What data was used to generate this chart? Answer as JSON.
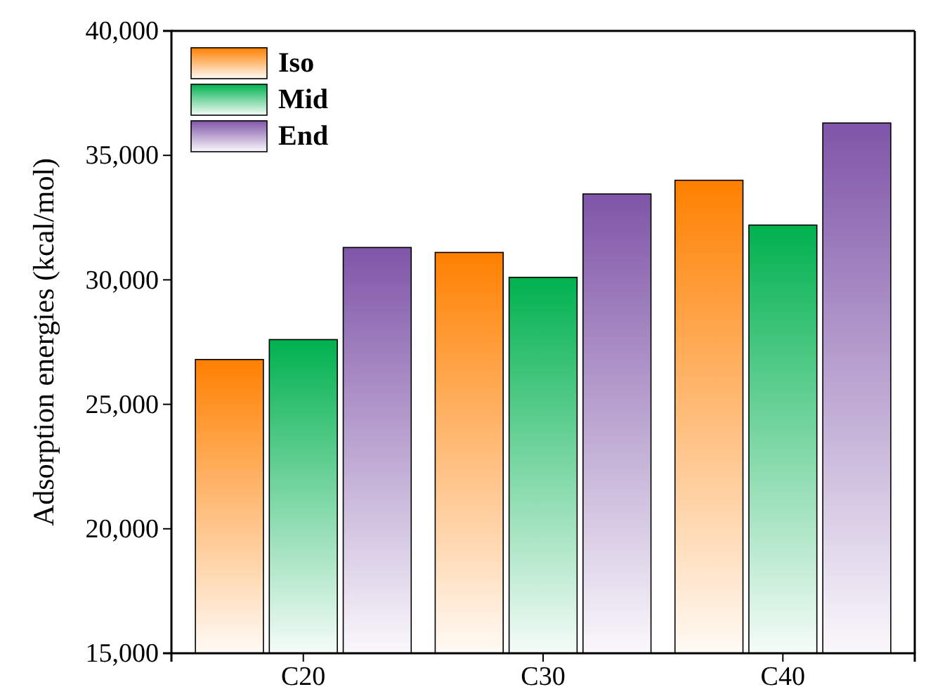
{
  "chart_data": {
    "type": "bar",
    "ylabel": "Adsorption energies (kcal/mol)",
    "categories": [
      "C20",
      "C30",
      "C40"
    ],
    "series": [
      {
        "name": "Iso",
        "color": "#ff8000",
        "values": [
          26800,
          31100,
          34000
        ]
      },
      {
        "name": "Mid",
        "color": "#00b14f",
        "values": [
          27600,
          30100,
          32200
        ]
      },
      {
        "name": "End",
        "color": "#7f55a8",
        "values": [
          31300,
          33450,
          36300
        ]
      }
    ],
    "ylim": [
      15000,
      40000
    ],
    "yticks": [
      {
        "value": 15000,
        "label": "15,000"
      },
      {
        "value": 20000,
        "label": "20,000"
      },
      {
        "value": 25000,
        "label": "25,000"
      },
      {
        "value": 30000,
        "label": "30,000"
      },
      {
        "value": 35000,
        "label": "35,000"
      },
      {
        "value": 40000,
        "label": "40,000"
      }
    ],
    "legend": "top left",
    "grid": false
  }
}
